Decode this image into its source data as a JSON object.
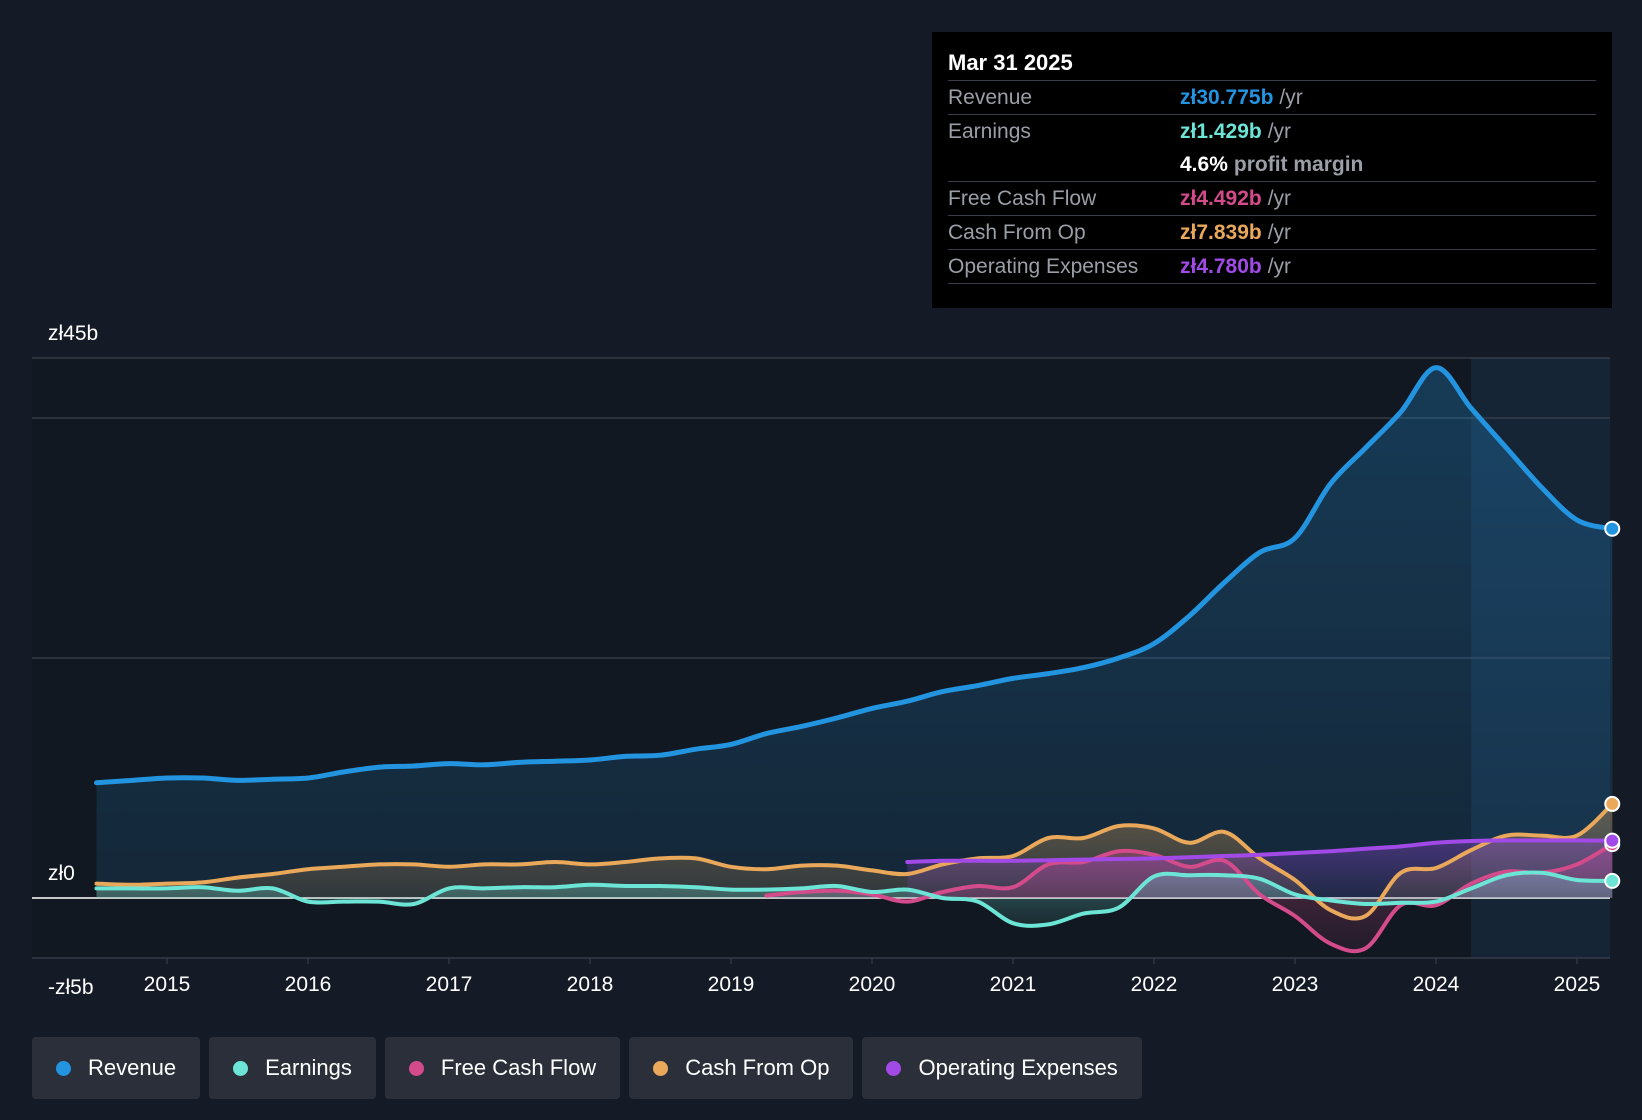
{
  "tooltip": {
    "date": "Mar 31 2025",
    "rows": [
      {
        "label": "Revenue",
        "value": "zł30.775b",
        "unit": "/yr",
        "color": "#2394df"
      },
      {
        "label": "Earnings",
        "value": "zł1.429b",
        "unit": "/yr",
        "color": "#6ce5d6"
      },
      {
        "margin_value": "4.6%",
        "margin_label": "profit margin"
      },
      {
        "label": "Free Cash Flow",
        "value": "zł4.492b",
        "unit": "/yr",
        "color": "#d44b8c"
      },
      {
        "label": "Cash From Op",
        "value": "zł7.839b",
        "unit": "/yr",
        "color": "#e9a85a"
      },
      {
        "label": "Operating Expenses",
        "value": "zł4.780b",
        "unit": "/yr",
        "color": "#a24ae8"
      }
    ]
  },
  "legend": [
    {
      "label": "Revenue",
      "color": "#2394df"
    },
    {
      "label": "Earnings",
      "color": "#6ce5d6"
    },
    {
      "label": "Free Cash Flow",
      "color": "#d44b8c"
    },
    {
      "label": "Cash From Op",
      "color": "#e9a85a"
    },
    {
      "label": "Operating Expenses",
      "color": "#a24ae8"
    }
  ],
  "chart_data": {
    "type": "line",
    "title": "",
    "xlabel": "",
    "ylabel": "",
    "ylim": [
      -5,
      45
    ],
    "xlim": [
      2014.5,
      2025.25
    ],
    "y_tick_labels": [
      {
        "value": 45,
        "label": "zł45b"
      },
      {
        "value": 0,
        "label": "zł0"
      },
      {
        "value": -5,
        "label": "-zł5b"
      }
    ],
    "x_ticks": [
      2015,
      2016,
      2017,
      2018,
      2019,
      2020,
      2021,
      2022,
      2023,
      2024,
      2025
    ],
    "x_tick_labels": [
      "2015",
      "2016",
      "2017",
      "2018",
      "2019",
      "2020",
      "2021",
      "2022",
      "2023",
      "2024",
      "2025"
    ],
    "gridlines": [
      45,
      40,
      20,
      0,
      -5
    ],
    "highlight_start": 2024.25,
    "series": [
      {
        "name": "Revenue",
        "color": "#2394df",
        "fill": true,
        "x": [
          2014.5,
          2014.75,
          2015.0,
          2015.25,
          2015.5,
          2015.75,
          2016.0,
          2016.25,
          2016.5,
          2016.75,
          2017.0,
          2017.25,
          2017.5,
          2017.75,
          2018.0,
          2018.25,
          2018.5,
          2018.75,
          2019.0,
          2019.25,
          2019.5,
          2019.75,
          2020.0,
          2020.25,
          2020.5,
          2020.75,
          2021.0,
          2021.25,
          2021.5,
          2021.75,
          2022.0,
          2022.25,
          2022.5,
          2022.75,
          2023.0,
          2023.25,
          2023.5,
          2023.75,
          2024.0,
          2024.25,
          2024.5,
          2024.75,
          2025.0,
          2025.25
        ],
        "values": [
          9.6,
          9.8,
          10.0,
          10.0,
          9.8,
          9.9,
          10.0,
          10.5,
          10.9,
          11.0,
          11.2,
          11.1,
          11.3,
          11.4,
          11.5,
          11.8,
          11.9,
          12.4,
          12.8,
          13.7,
          14.3,
          15.0,
          15.8,
          16.4,
          17.2,
          17.7,
          18.3,
          18.7,
          19.2,
          20.0,
          21.2,
          23.5,
          26.3,
          28.8,
          30.0,
          34.5,
          37.5,
          40.5,
          44.2,
          40.8,
          37.5,
          34.2,
          31.5,
          30.775
        ]
      },
      {
        "name": "Earnings",
        "color": "#6ce5d6",
        "fill": true,
        "x": [
          2014.5,
          2014.75,
          2015.0,
          2015.25,
          2015.5,
          2015.75,
          2016.0,
          2016.25,
          2016.5,
          2016.75,
          2017.0,
          2017.25,
          2017.5,
          2017.75,
          2018.0,
          2018.25,
          2018.5,
          2018.75,
          2019.0,
          2019.25,
          2019.5,
          2019.75,
          2020.0,
          2020.25,
          2020.5,
          2020.75,
          2021.0,
          2021.25,
          2021.5,
          2021.75,
          2022.0,
          2022.25,
          2022.5,
          2022.75,
          2023.0,
          2023.25,
          2023.5,
          2023.75,
          2024.0,
          2024.25,
          2024.5,
          2024.75,
          2025.0,
          2025.25
        ],
        "values": [
          0.8,
          0.8,
          0.8,
          0.9,
          0.6,
          0.8,
          -0.3,
          -0.3,
          -0.3,
          -0.5,
          0.8,
          0.8,
          0.9,
          0.9,
          1.1,
          1.0,
          1.0,
          0.9,
          0.7,
          0.7,
          0.8,
          1.0,
          0.5,
          0.7,
          0.0,
          -0.3,
          -2.1,
          -2.2,
          -1.3,
          -0.8,
          1.8,
          1.9,
          1.9,
          1.6,
          0.3,
          -0.2,
          -0.5,
          -0.4,
          -0.3,
          0.8,
          1.9,
          2.1,
          1.5,
          1.429
        ]
      },
      {
        "name": "Free Cash Flow",
        "color": "#d44b8c",
        "fill": true,
        "x": [
          2019.25,
          2019.5,
          2019.75,
          2020.0,
          2020.25,
          2020.5,
          2020.75,
          2021.0,
          2021.25,
          2021.5,
          2021.75,
          2022.0,
          2022.25,
          2022.5,
          2022.75,
          2023.0,
          2023.25,
          2023.5,
          2023.75,
          2024.0,
          2024.25,
          2024.5,
          2024.75,
          2025.0,
          2025.25
        ],
        "values": [
          0.2,
          0.5,
          0.6,
          0.3,
          -0.3,
          0.5,
          1.0,
          0.9,
          2.8,
          3.0,
          3.9,
          3.6,
          2.6,
          3.1,
          0.3,
          -1.5,
          -3.8,
          -4.2,
          -0.6,
          -0.6,
          1.2,
          2.2,
          2.1,
          2.8,
          4.492
        ]
      },
      {
        "name": "Cash From Op",
        "color": "#e9a85a",
        "fill": true,
        "x": [
          2014.5,
          2014.75,
          2015.0,
          2015.25,
          2015.5,
          2015.75,
          2016.0,
          2016.25,
          2016.5,
          2016.75,
          2017.0,
          2017.25,
          2017.5,
          2017.75,
          2018.0,
          2018.25,
          2018.5,
          2018.75,
          2019.0,
          2019.25,
          2019.5,
          2019.75,
          2020.0,
          2020.25,
          2020.5,
          2020.75,
          2021.0,
          2021.25,
          2021.5,
          2021.75,
          2022.0,
          2022.25,
          2022.5,
          2022.75,
          2023.0,
          2023.25,
          2023.5,
          2023.75,
          2024.0,
          2024.25,
          2024.5,
          2024.75,
          2025.0,
          2025.25
        ],
        "values": [
          1.2,
          1.1,
          1.2,
          1.3,
          1.7,
          2.0,
          2.4,
          2.6,
          2.8,
          2.8,
          2.6,
          2.8,
          2.8,
          3.0,
          2.8,
          3.0,
          3.3,
          3.3,
          2.6,
          2.4,
          2.7,
          2.7,
          2.3,
          2.0,
          2.8,
          3.3,
          3.5,
          5.0,
          5.0,
          6.0,
          5.8,
          4.6,
          5.5,
          3.3,
          1.5,
          -1.0,
          -1.5,
          2.1,
          2.5,
          4.0,
          5.2,
          5.2,
          5.2,
          7.839
        ]
      },
      {
        "name": "Operating Expenses",
        "color": "#a24ae8",
        "fill": true,
        "x": [
          2020.25,
          2020.5,
          2020.75,
          2021.0,
          2021.25,
          2021.5,
          2021.75,
          2022.0,
          2022.25,
          2022.5,
          2022.75,
          2023.0,
          2023.25,
          2023.5,
          2023.75,
          2024.0,
          2024.25,
          2024.5,
          2024.75,
          2025.0,
          2025.25
        ],
        "values": [
          3.0,
          3.1,
          3.1,
          3.1,
          3.15,
          3.2,
          3.25,
          3.3,
          3.4,
          3.5,
          3.6,
          3.75,
          3.9,
          4.1,
          4.3,
          4.6,
          4.75,
          4.8,
          4.8,
          4.8,
          4.78
        ]
      }
    ]
  }
}
